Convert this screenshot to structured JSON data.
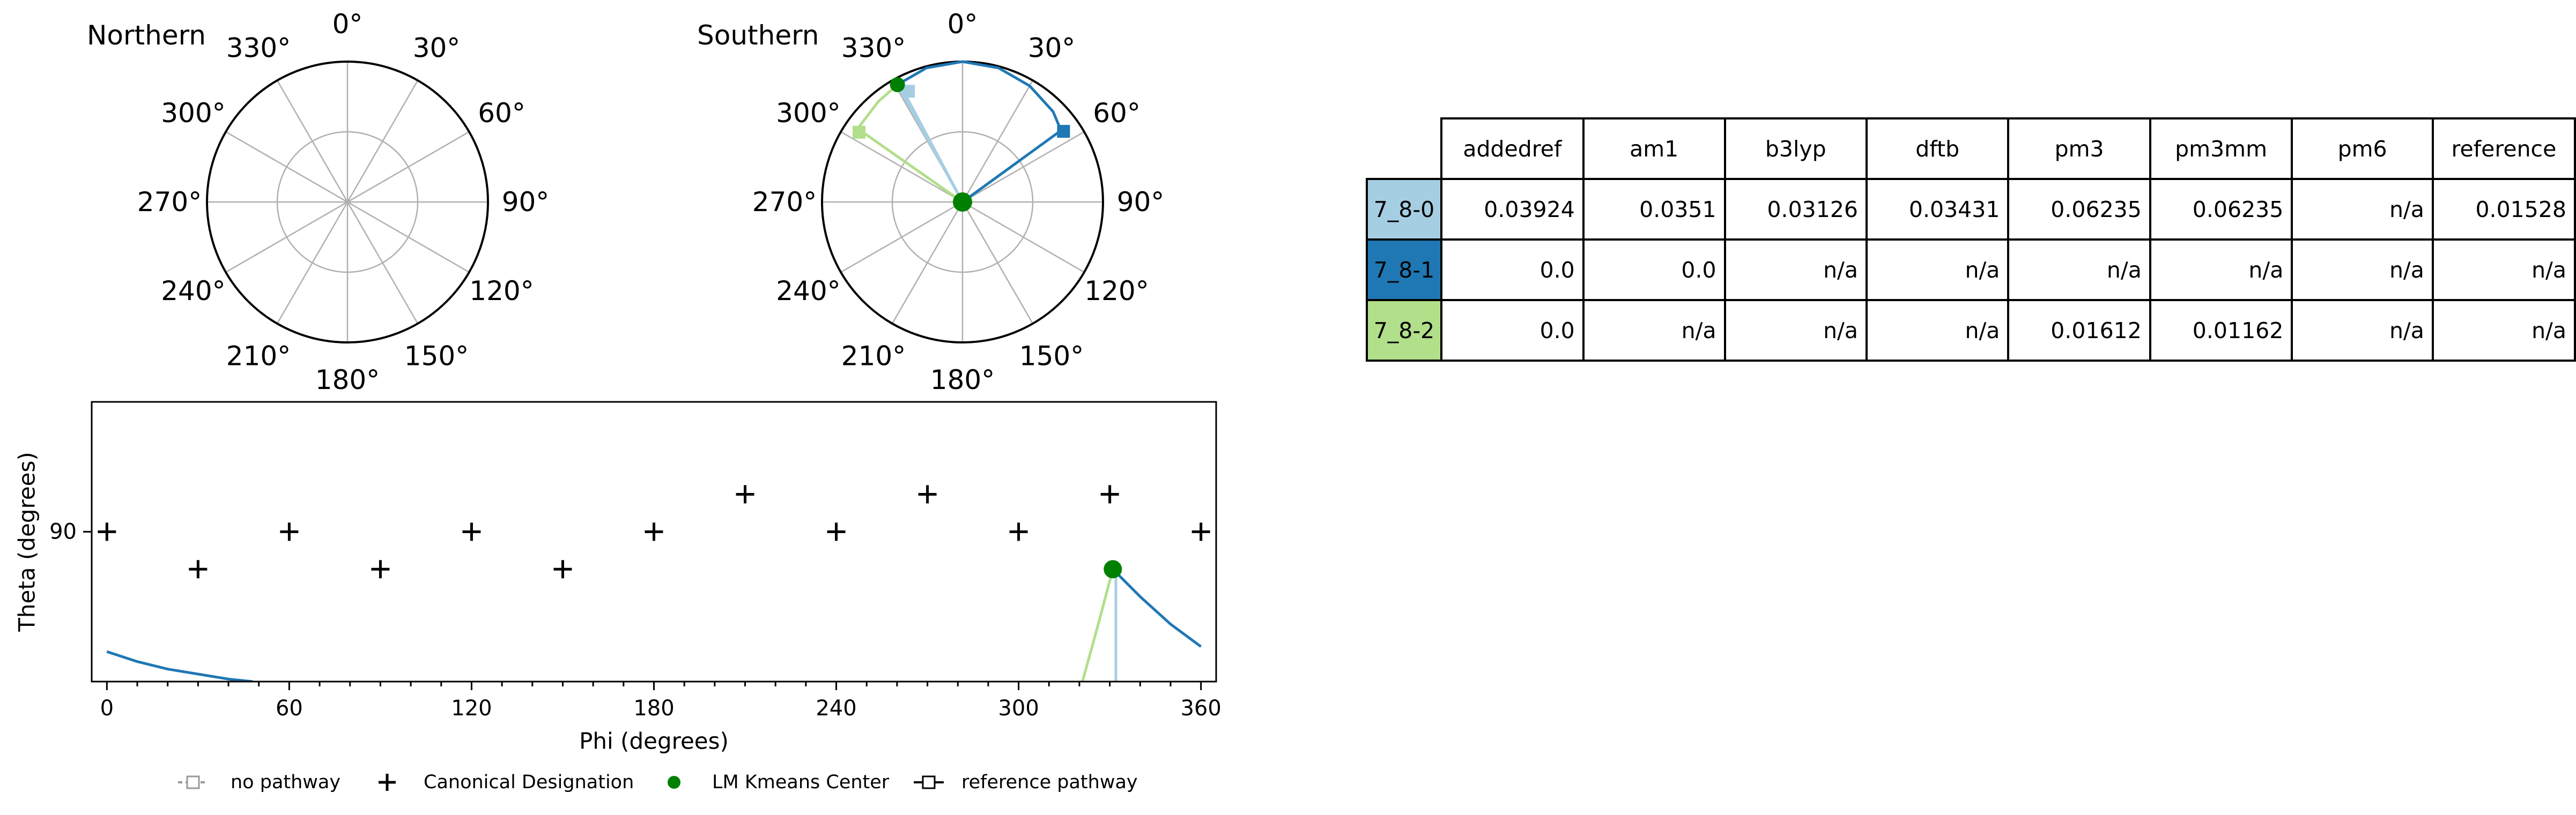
{
  "panels": {
    "northern_title": "Northern",
    "southern_title": "Southern",
    "polar_tick_labels": [
      "0°",
      "30°",
      "60°",
      "90°",
      "120°",
      "150°",
      "180°",
      "210°",
      "240°",
      "270°",
      "300°",
      "330°"
    ]
  },
  "chart_data": [
    {
      "type": "polar",
      "panel": "Northern",
      "title": "Northern",
      "angular_ticks_deg": [
        0,
        30,
        60,
        90,
        120,
        150,
        180,
        210,
        240,
        270,
        300,
        330
      ],
      "theta_zero": "top",
      "direction": "clockwise",
      "series": []
    },
    {
      "type": "polar",
      "panel": "Southern",
      "title": "Southern",
      "angular_ticks_deg": [
        0,
        30,
        60,
        90,
        120,
        150,
        180,
        210,
        240,
        270,
        300,
        330
      ],
      "theta_zero": "top",
      "direction": "clockwise",
      "radial_range": [
        0,
        90
      ],
      "series": [
        {
          "name": "7_8-0",
          "color": "#a6cee3",
          "phi": [
            331,
            331,
            332
          ],
          "r": [
            86,
            0,
            86
          ],
          "endpoint": {
            "phi": 334,
            "r": 79
          }
        },
        {
          "name": "7_8-1",
          "color": "#1f78b4",
          "phi": [
            331,
            345,
            0,
            15,
            30,
            45,
            54,
            54
          ],
          "r": [
            86,
            89,
            90,
            89,
            86,
            82,
            78,
            0
          ],
          "endpoint": {
            "phi": 55,
            "r": 79
          }
        },
        {
          "name": "7_8-2",
          "color": "#b2df8a",
          "phi": [
            331,
            320,
            305,
            303
          ],
          "r": [
            86,
            84,
            82,
            0
          ],
          "endpoint": {
            "phi": 304,
            "r": 80
          }
        }
      ],
      "centers": [
        {
          "phi": 331,
          "r": 86
        },
        {
          "phi": 0,
          "r": 0
        }
      ]
    },
    {
      "type": "scatter",
      "panel": "phi-theta",
      "xlabel": "Phi (degrees)",
      "ylabel": "Theta (degrees)",
      "xlim": [
        -5,
        365
      ],
      "ylim": [
        60,
        116
      ],
      "xticks": [
        0,
        60,
        120,
        180,
        240,
        300,
        360
      ],
      "yticks": [
        90
      ],
      "canonical_designations": [
        {
          "phi": 0,
          "theta": 90
        },
        {
          "phi": 30,
          "theta": 82.5
        },
        {
          "phi": 60,
          "theta": 90
        },
        {
          "phi": 90,
          "theta": 82.5
        },
        {
          "phi": 120,
          "theta": 90
        },
        {
          "phi": 150,
          "theta": 82.5
        },
        {
          "phi": 180,
          "theta": 90
        },
        {
          "phi": 210,
          "theta": 97.5
        },
        {
          "phi": 240,
          "theta": 90
        },
        {
          "phi": 270,
          "theta": 97.5
        },
        {
          "phi": 300,
          "theta": 90
        },
        {
          "phi": 330,
          "theta": 97.5
        },
        {
          "phi": 360,
          "theta": 90
        }
      ],
      "kmeans_centers": [
        {
          "phi": 331,
          "theta": 82.5
        }
      ],
      "pathways": [
        {
          "name": "7_8-0",
          "color": "#a6cee3",
          "phi": [
            332,
            332
          ],
          "theta": [
            82.5,
            60
          ]
        },
        {
          "name": "7_8-1",
          "color": "#1f78b4",
          "phi": [
            331,
            340,
            350,
            360
          ],
          "theta": [
            82.5,
            77,
            71.5,
            67
          ]
        },
        {
          "name": "7_8-1",
          "color": "#1f78b4",
          "phi": [
            0,
            10,
            20,
            30,
            40,
            48
          ],
          "theta": [
            66,
            64,
            62.5,
            61.5,
            60.5,
            60
          ]
        },
        {
          "name": "7_8-2",
          "color": "#b2df8a",
          "phi": [
            331,
            326,
            321
          ],
          "theta": [
            82.5,
            71,
            60
          ]
        }
      ]
    }
  ],
  "legend": {
    "items": [
      {
        "label": "no pathway",
        "marker": "dashed-square"
      },
      {
        "label": "Canonical Designation",
        "marker": "plus"
      },
      {
        "label": "LM Kmeans Center",
        "marker": "green-dot"
      },
      {
        "label": "reference pathway",
        "marker": "solid-square"
      }
    ]
  },
  "table": {
    "columns": [
      "addedref",
      "am1",
      "b3lyp",
      "dftb",
      "pm3",
      "pm3mm",
      "pm6",
      "reference"
    ],
    "rows": [
      {
        "label": "7_8-0",
        "color": "#a6cee3",
        "values": [
          "0.03924",
          "0.0351",
          "0.03126",
          "0.03431",
          "0.06235",
          "0.06235",
          "n/a",
          "0.01528"
        ]
      },
      {
        "label": "7_8-1",
        "color": "#1f78b4",
        "values": [
          "0.0",
          "0.0",
          "n/a",
          "n/a",
          "n/a",
          "n/a",
          "n/a",
          "n/a"
        ]
      },
      {
        "label": "7_8-2",
        "color": "#b2df8a",
        "values": [
          "0.0",
          "n/a",
          "n/a",
          "n/a",
          "0.01612",
          "0.01162",
          "n/a",
          "n/a"
        ]
      }
    ]
  }
}
